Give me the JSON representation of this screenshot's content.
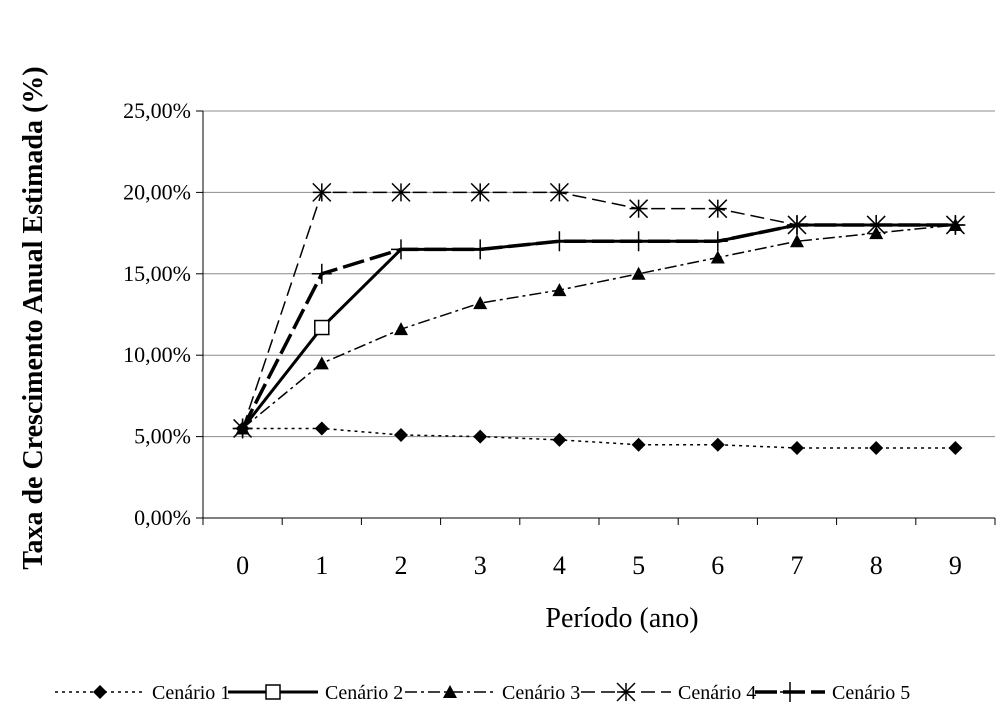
{
  "chart_data": {
    "type": "line",
    "title": "",
    "xlabel": "Período (ano)",
    "ylabel": "Taxa de Crescimento Anual Estimada (%)",
    "x": [
      0,
      1,
      2,
      3,
      4,
      5,
      6,
      7,
      8,
      9
    ],
    "x_tick_labels": [
      "0",
      "1",
      "2",
      "3",
      "4",
      "5",
      "6",
      "7",
      "8",
      "9"
    ],
    "y_tick_labels": [
      "0,00%",
      "5,00%",
      "10,00%",
      "15,00%",
      "20,00%",
      "25,00%"
    ],
    "ylim": [
      0,
      25
    ],
    "grid": "horizontal",
    "legend": "bottom",
    "series": [
      {
        "name": "Cenário 1",
        "values": [
          5.5,
          5.5,
          5.1,
          5.0,
          4.8,
          4.5,
          4.5,
          4.3,
          4.3,
          4.3
        ],
        "marker": "diamond",
        "dash": "dotted",
        "color": "#000000"
      },
      {
        "name": "Cenário 2",
        "values": [
          5.5,
          11.7,
          16.5,
          16.5,
          17.0,
          17.0,
          17.0,
          18.0,
          18.0,
          18.0
        ],
        "marker": "square",
        "dash": "solid",
        "color": "#000000"
      },
      {
        "name": "Cenário 3",
        "values": [
          5.5,
          9.5,
          11.6,
          13.2,
          14.0,
          15.0,
          16.0,
          17.0,
          17.5,
          18.0
        ],
        "marker": "triangle",
        "dash": "dashdot",
        "color": "#000000"
      },
      {
        "name": "Cenário 4",
        "values": [
          5.5,
          20.0,
          20.0,
          20.0,
          20.0,
          19.0,
          19.0,
          18.0,
          18.0,
          18.0
        ],
        "marker": "asterisk",
        "dash": "dashed",
        "color": "#000000"
      },
      {
        "name": "Cenário 5",
        "values": [
          5.5,
          15.0,
          16.5,
          16.5,
          17.0,
          17.0,
          17.0,
          18.0,
          18.0,
          18.0
        ],
        "marker": "plus",
        "dash": "longdash",
        "color": "#000000"
      }
    ]
  }
}
